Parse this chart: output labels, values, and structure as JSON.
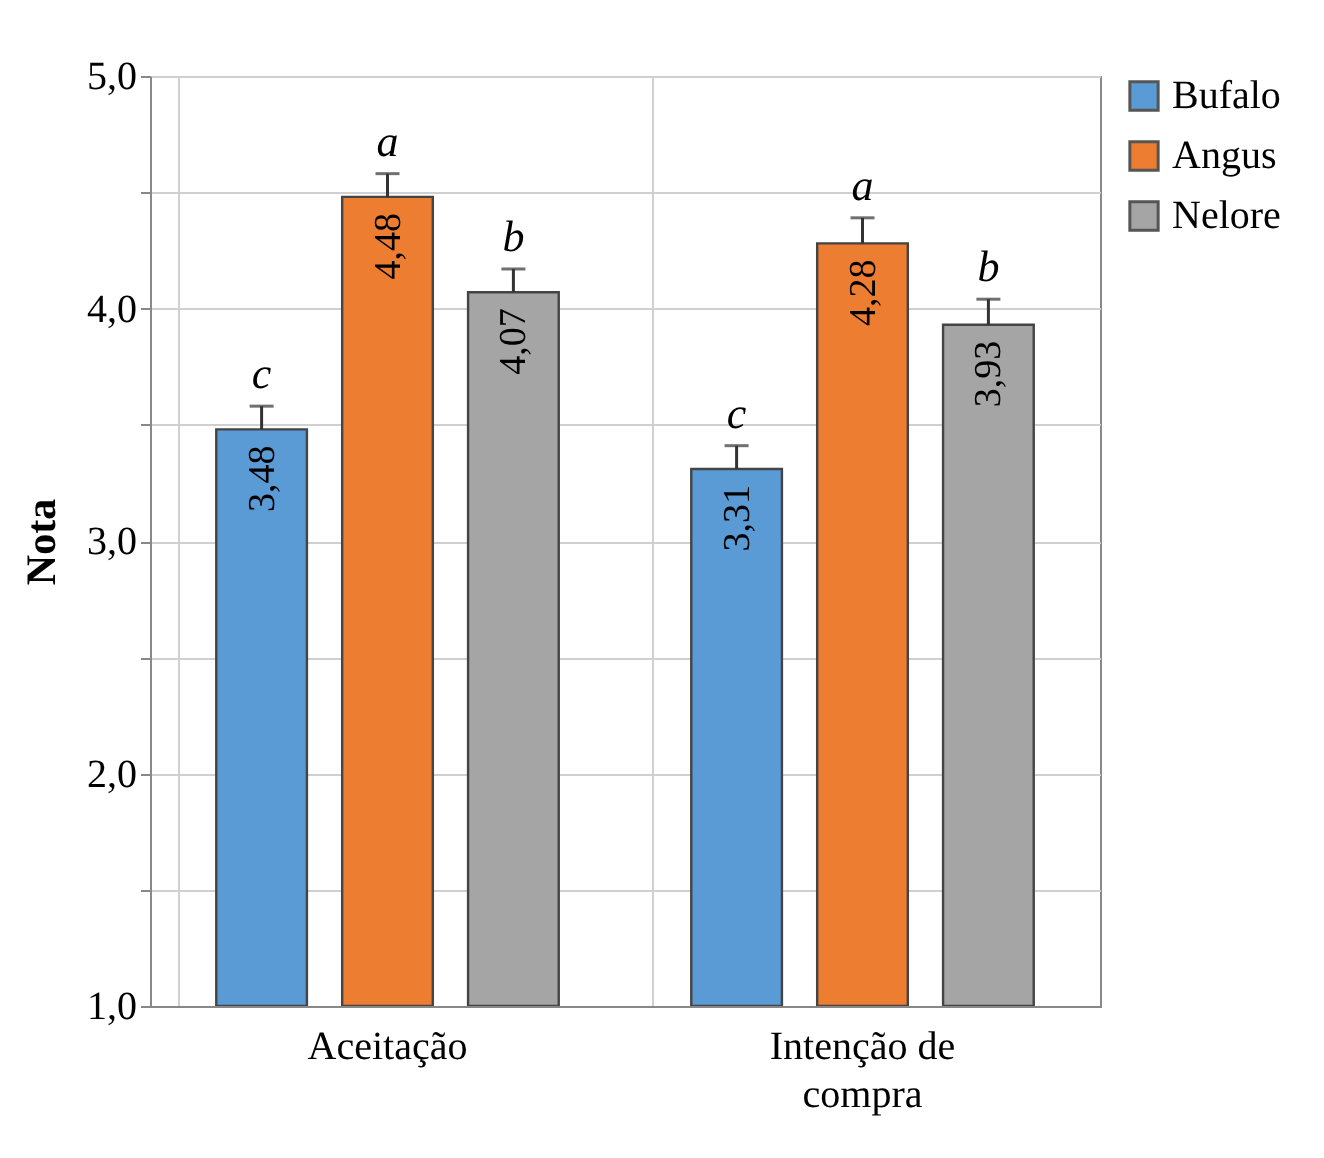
{
  "chart_data": {
    "type": "bar",
    "ylabel": "Nota",
    "categories": [
      "Aceitação",
      "Intenção de compra"
    ],
    "series": [
      {
        "name": "Bufalo",
        "color": "#5b9bd5",
        "values": [
          3.48,
          3.31
        ],
        "errors": [
          0.1,
          0.1
        ],
        "value_labels": [
          "3,48",
          "3,31"
        ]
      },
      {
        "name": "Angus",
        "color": "#ed7d31",
        "values": [
          4.48,
          4.28
        ],
        "errors": [
          0.1,
          0.11
        ],
        "value_labels": [
          "4,48",
          "4,28"
        ]
      },
      {
        "name": "Nelore",
        "color": "#a5a5a5",
        "values": [
          4.07,
          3.93
        ],
        "errors": [
          0.1,
          0.11
        ],
        "value_labels": [
          "4,07",
          "3,93"
        ]
      }
    ],
    "ylim": [
      1,
      5
    ],
    "yticks": [
      {
        "value": 1,
        "label": "1,0"
      },
      {
        "value": 1.5,
        "label": null
      },
      {
        "value": 2,
        "label": "2,0"
      },
      {
        "value": 2.5,
        "label": null
      },
      {
        "value": 3,
        "label": "3,0"
      },
      {
        "value": 3.5,
        "label": null
      },
      {
        "value": 4,
        "label": "4,0"
      },
      {
        "value": 4.5,
        "label": null
      },
      {
        "value": 5,
        "label": "5,0"
      }
    ],
    "grid": true,
    "legend": "right",
    "annotations": [
      "c",
      "a",
      "b",
      "c",
      "a",
      "b"
    ]
  }
}
